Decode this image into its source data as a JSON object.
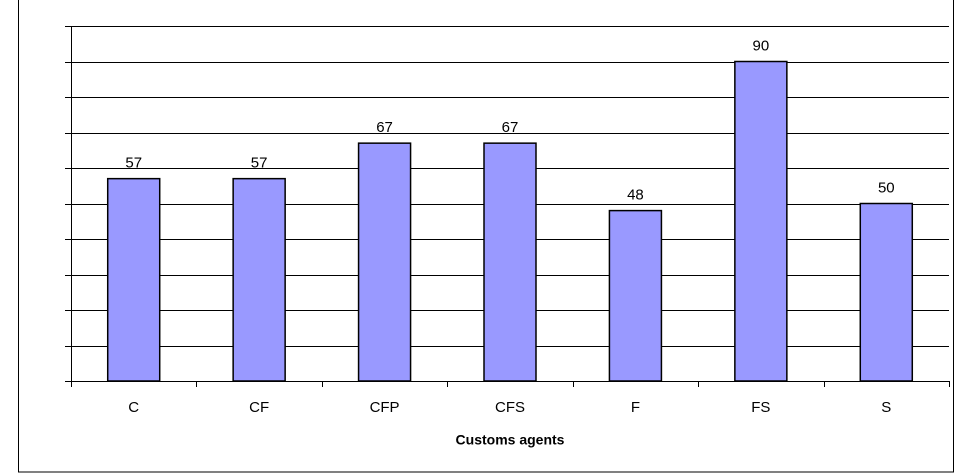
{
  "chart_data": {
    "type": "bar",
    "x_label": "Customs agents",
    "categories": [
      "C",
      "CF",
      "CFP",
      "CFS",
      "F",
      "FS",
      "S"
    ],
    "values": [
      57,
      57,
      67,
      67,
      48,
      90,
      50
    ],
    "color": "#9999ff",
    "ylim": [
      0,
      100
    ],
    "yticks": [
      0,
      10,
      20,
      30,
      40,
      50,
      60,
      70,
      80,
      90,
      100
    ],
    "grid": true
  }
}
